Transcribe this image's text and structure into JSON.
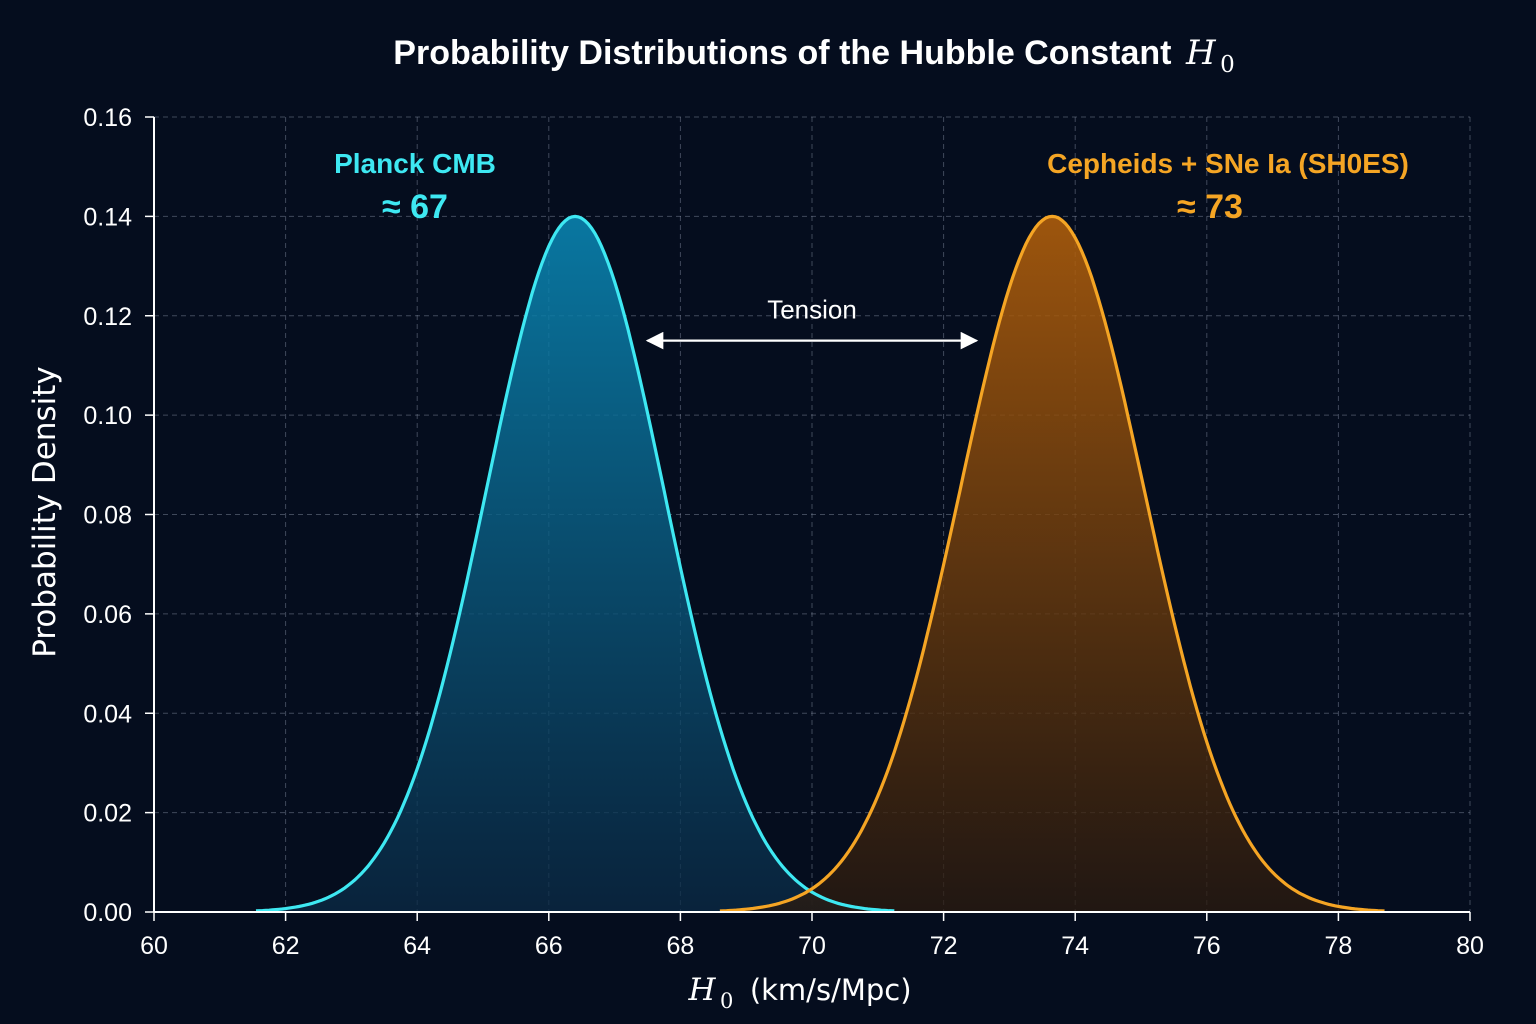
{
  "chart_data": {
    "type": "area",
    "title": {
      "text": "Probability Distributions of the Hubble Constant",
      "math_symbol": "H",
      "math_subscript": "0"
    },
    "xlabel": {
      "math_symbol": "H",
      "math_subscript": "0",
      "units": "(km/s/Mpc)"
    },
    "ylabel": "Probability Density",
    "xlim": [
      60,
      80
    ],
    "ylim": [
      0,
      0.16
    ],
    "x_ticks": [
      "60",
      "62",
      "64",
      "66",
      "68",
      "70",
      "72",
      "74",
      "76",
      "78",
      "80"
    ],
    "y_ticks": [
      "0.00",
      "0.02",
      "0.04",
      "0.06",
      "0.08",
      "0.10",
      "0.12",
      "0.14",
      "0.16"
    ],
    "grid": true,
    "series": [
      {
        "name": "Planck CMB",
        "annotation_value": "≈ 67",
        "mean": 66.4,
        "sigma": 1.35,
        "peak": 0.14,
        "color": "#3ee8f2",
        "fill_top": "#0a8ab8",
        "fill_bottom": "#0a2a45"
      },
      {
        "name": "Cepheids + SNe Ia (SH0ES)",
        "annotation_value": "≈ 73",
        "mean": 73.65,
        "sigma": 1.4,
        "peak": 0.14,
        "color": "#f5a524",
        "fill_top": "#b8620a",
        "fill_bottom": "#2a1a0e"
      }
    ],
    "annotations": [
      {
        "text": "Tension",
        "type": "double-arrow",
        "x_from": 67.5,
        "x_to": 72.5,
        "y": 0.115
      }
    ]
  }
}
